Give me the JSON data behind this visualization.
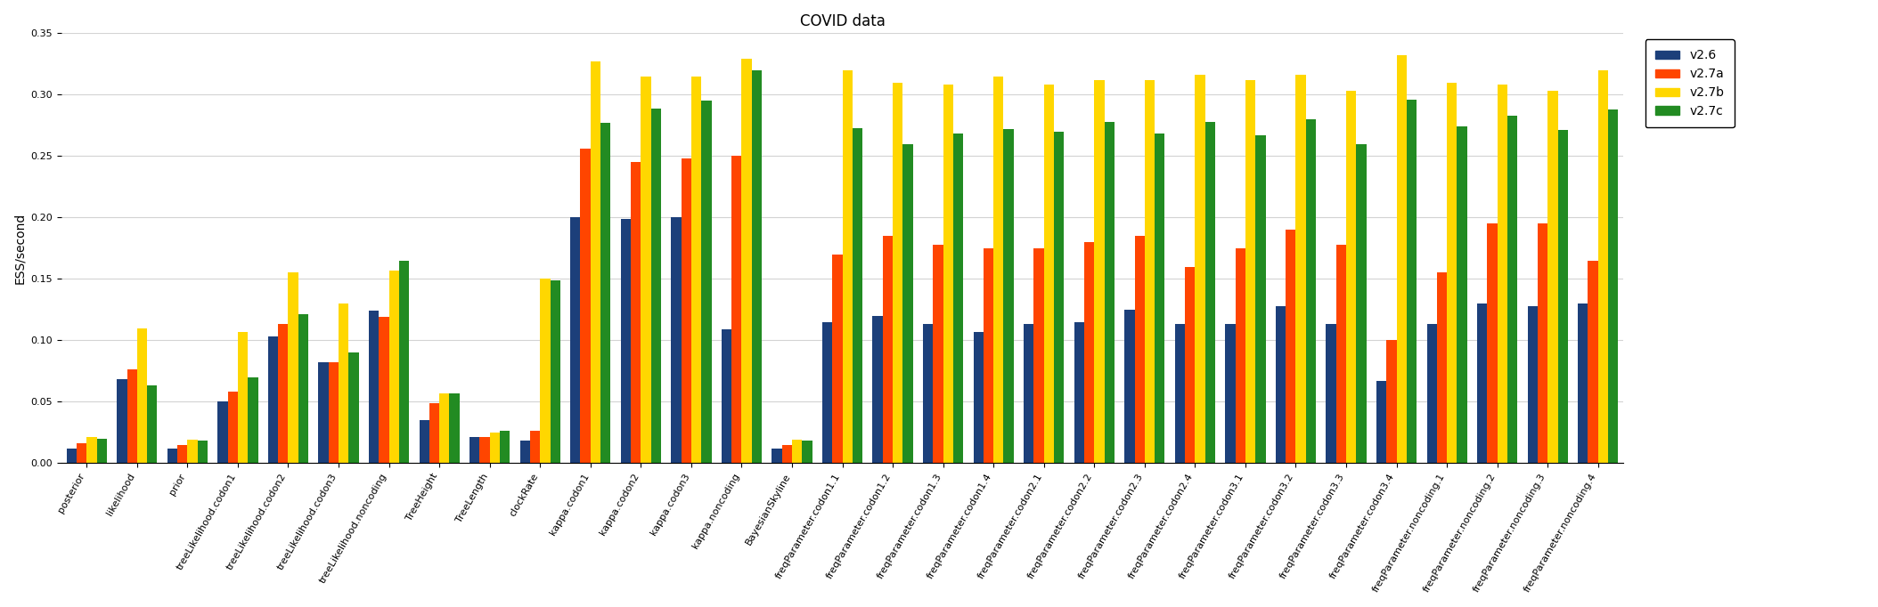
{
  "title": "COVID data",
  "ylabel": "ESS/second",
  "ylim": [
    0,
    0.35
  ],
  "yticks": [
    0.0,
    0.05,
    0.1,
    0.15,
    0.2,
    0.25,
    0.3,
    0.35
  ],
  "categories": [
    "posterior",
    "likelihood",
    "prior",
    "treeLikelihood.codon1",
    "treeLikelihood.codon2",
    "treeLikelihood.codon3",
    "treeLikelihood.noncoding",
    "TreeHeight",
    "TreeLength",
    "clockRate",
    "kappa.codon1",
    "kappa.codon2",
    "kappa.codon3",
    "kappa.noncoding",
    "BayesianSkyline",
    "freqParameter.codon1.1",
    "freqParameter.codon1.2",
    "freqParameter.codon1.3",
    "freqParameter.codon1.4",
    "freqParameter.codon2.1",
    "freqParameter.codon2.2",
    "freqParameter.codon2.3",
    "freqParameter.codon2.4",
    "freqParameter.codon3.1",
    "freqParameter.codon3.2",
    "freqParameter.codon3.3",
    "freqParameter.codon3.4",
    "freqParameter.noncoding.1",
    "freqParameter.noncoding.2",
    "freqParameter.noncoding.3",
    "freqParameter.noncoding.4"
  ],
  "series": {
    "v2.6": [
      0.012,
      0.068,
      0.012,
      0.05,
      0.103,
      0.082,
      0.124,
      0.035,
      0.021,
      0.018,
      0.2,
      0.199,
      0.2,
      0.109,
      0.012,
      0.115,
      0.12,
      0.113,
      0.107,
      0.113,
      0.115,
      0.125,
      0.113,
      0.113,
      0.128,
      0.113,
      0.067,
      0.113,
      0.13,
      0.128,
      0.13
    ],
    "v2.7a": [
      0.016,
      0.076,
      0.015,
      0.058,
      0.113,
      0.082,
      0.119,
      0.049,
      0.021,
      0.026,
      0.256,
      0.245,
      0.248,
      0.25,
      0.015,
      0.17,
      0.185,
      0.178,
      0.175,
      0.175,
      0.18,
      0.185,
      0.16,
      0.175,
      0.19,
      0.178,
      0.1,
      0.155,
      0.195,
      0.195,
      0.165
    ],
    "v2.7b": [
      0.021,
      0.11,
      0.019,
      0.107,
      0.155,
      0.13,
      0.157,
      0.057,
      0.025,
      0.15,
      0.327,
      0.315,
      0.315,
      0.329,
      0.019,
      0.32,
      0.31,
      0.308,
      0.315,
      0.308,
      0.312,
      0.312,
      0.316,
      0.312,
      0.316,
      0.303,
      0.332,
      0.31,
      0.308,
      0.303,
      0.32
    ],
    "v2.7c": [
      0.02,
      0.063,
      0.018,
      0.07,
      0.121,
      0.09,
      0.165,
      0.057,
      0.026,
      0.149,
      0.277,
      0.289,
      0.295,
      0.32,
      0.018,
      0.273,
      0.26,
      0.268,
      0.272,
      0.27,
      0.278,
      0.268,
      0.278,
      0.267,
      0.28,
      0.26,
      0.296,
      0.274,
      0.283,
      0.271,
      0.288
    ]
  },
  "colors": {
    "v2.6": "#1C3F7A",
    "v2.7a": "#FF4500",
    "v2.7b": "#FFD700",
    "v2.7c": "#228B22"
  },
  "legend_order": [
    "v2.6",
    "v2.7a",
    "v2.7b",
    "v2.7c"
  ],
  "bar_width": 0.2,
  "figsize": [
    21.08,
    6.82
  ],
  "dpi": 100,
  "title_fontsize": 12,
  "ylabel_fontsize": 10,
  "tick_fontsize": 8,
  "legend_fontsize": 10
}
